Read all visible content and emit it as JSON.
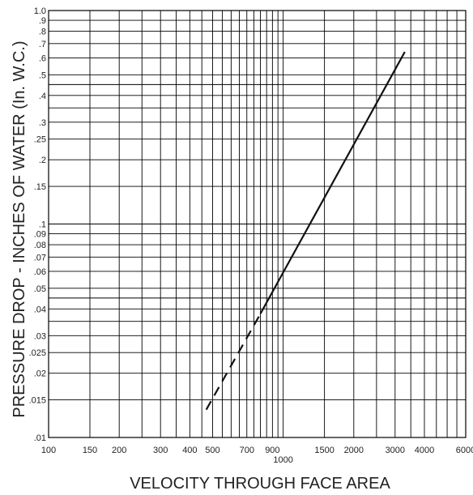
{
  "chart_data": {
    "type": "line",
    "xlabel": "VELOCITY THROUGH FACE AREA",
    "ylabel": "PRESSURE DROP - INCHES OF WATER (In. W.C.)",
    "x_scale": "log",
    "y_scale": "log",
    "xlim": [
      100,
      6000
    ],
    "ylim": [
      0.01,
      1.0
    ],
    "grid": true,
    "x_gridlines": [
      100,
      150,
      200,
      250,
      300,
      350,
      400,
      450,
      500,
      550,
      600,
      650,
      700,
      750,
      800,
      850,
      900,
      950,
      1000,
      1500,
      2000,
      2500,
      3000,
      3500,
      4000,
      4500,
      5000,
      5500,
      6000
    ],
    "y_gridlines": [
      0.01,
      0.015,
      0.02,
      0.025,
      0.03,
      0.035,
      0.04,
      0.045,
      0.05,
      0.06,
      0.07,
      0.08,
      0.09,
      0.1,
      0.15,
      0.2,
      0.25,
      0.3,
      0.35,
      0.4,
      0.45,
      0.5,
      0.6,
      0.7,
      0.8,
      0.9,
      1.0
    ],
    "x_ticks": [
      {
        "value": 100,
        "label": "100"
      },
      {
        "value": 150,
        "label": "150"
      },
      {
        "value": 200,
        "label": "200"
      },
      {
        "value": 300,
        "label": "300"
      },
      {
        "value": 400,
        "label": "400"
      },
      {
        "value": 500,
        "label": "500"
      },
      {
        "value": 700,
        "label": "700"
      },
      {
        "value": 900,
        "label": "900"
      },
      {
        "value": 1000,
        "label": "1000"
      },
      {
        "value": 1500,
        "label": "1500"
      },
      {
        "value": 2000,
        "label": "2000"
      },
      {
        "value": 3000,
        "label": "3000"
      },
      {
        "value": 4000,
        "label": "4000"
      },
      {
        "value": 6000,
        "label": "6000"
      }
    ],
    "y_ticks": [
      {
        "value": 1.0,
        "label": "1.0"
      },
      {
        "value": 0.9,
        "label": ".9"
      },
      {
        "value": 0.8,
        "label": ".8"
      },
      {
        "value": 0.7,
        "label": ".7"
      },
      {
        "value": 0.6,
        "label": ".6"
      },
      {
        "value": 0.5,
        "label": ".5"
      },
      {
        "value": 0.4,
        "label": ".4"
      },
      {
        "value": 0.3,
        "label": ".3"
      },
      {
        "value": 0.25,
        "label": ".25"
      },
      {
        "value": 0.2,
        "label": ".2"
      },
      {
        "value": 0.15,
        "label": ".15"
      },
      {
        "value": 0.1,
        "label": ".1"
      },
      {
        "value": 0.09,
        "label": ".09"
      },
      {
        "value": 0.08,
        "label": ".08"
      },
      {
        "value": 0.07,
        "label": ".07"
      },
      {
        "value": 0.06,
        "label": ".06"
      },
      {
        "value": 0.05,
        "label": ".05"
      },
      {
        "value": 0.04,
        "label": ".04"
      },
      {
        "value": 0.03,
        "label": ".03"
      },
      {
        "value": 0.025,
        "label": ".025"
      },
      {
        "value": 0.02,
        "label": ".02"
      },
      {
        "value": 0.015,
        "label": ".015"
      },
      {
        "value": 0.01,
        "label": ".01"
      }
    ],
    "series": [
      {
        "style": "dashed",
        "x": [
          470,
          800
        ],
        "y": [
          0.0135,
          0.038
        ]
      },
      {
        "style": "solid",
        "x": [
          800,
          3300
        ],
        "y": [
          0.038,
          0.64
        ]
      }
    ],
    "colors": {
      "line": "#111111",
      "grid": "#000000",
      "background": "#ffffff"
    }
  }
}
